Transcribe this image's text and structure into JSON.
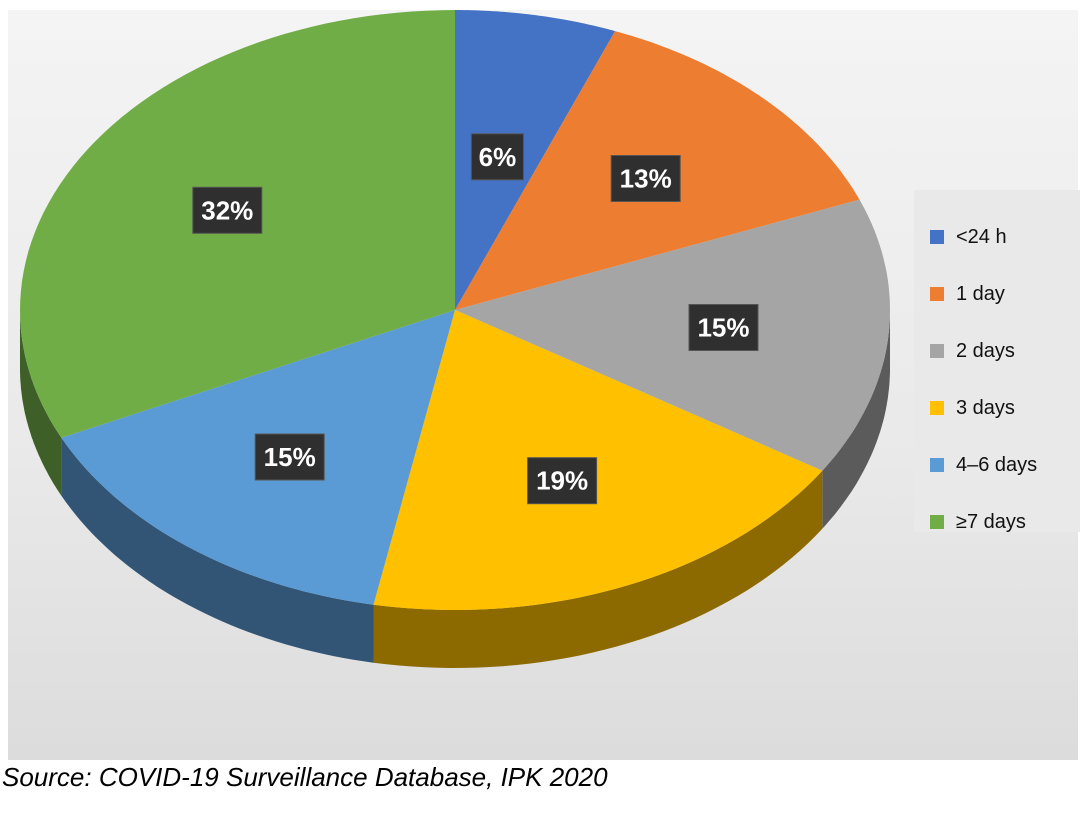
{
  "chart_data": {
    "type": "pie",
    "title": "",
    "categories": [
      "<24 h",
      "1 day",
      "2 days",
      "3 days",
      "4–6 days",
      "≥7 days"
    ],
    "values": [
      6,
      13,
      15,
      19,
      15,
      32
    ],
    "value_labels": [
      "6%",
      "13%",
      "15%",
      "19%",
      "15%",
      "32%"
    ],
    "colors": [
      "#4472c4",
      "#ed7d31",
      "#a5a5a5",
      "#ffc000",
      "#5b9bd5",
      "#70ad47"
    ],
    "legend_position": "right",
    "style": "3d"
  },
  "legend": {
    "items": [
      {
        "label": "<24 h",
        "color": "#4472c4"
      },
      {
        "label": "1 day",
        "color": "#ed7d31"
      },
      {
        "label": "2 days",
        "color": "#a5a5a5"
      },
      {
        "label": "3 days",
        "color": "#ffc000"
      },
      {
        "label": "4–6 days",
        "color": "#5b9bd5"
      },
      {
        "label": "≥7 days",
        "color": "#70ad47"
      }
    ]
  },
  "source_text": "Source: COVID-19 Surveillance Database, IPK 2020"
}
